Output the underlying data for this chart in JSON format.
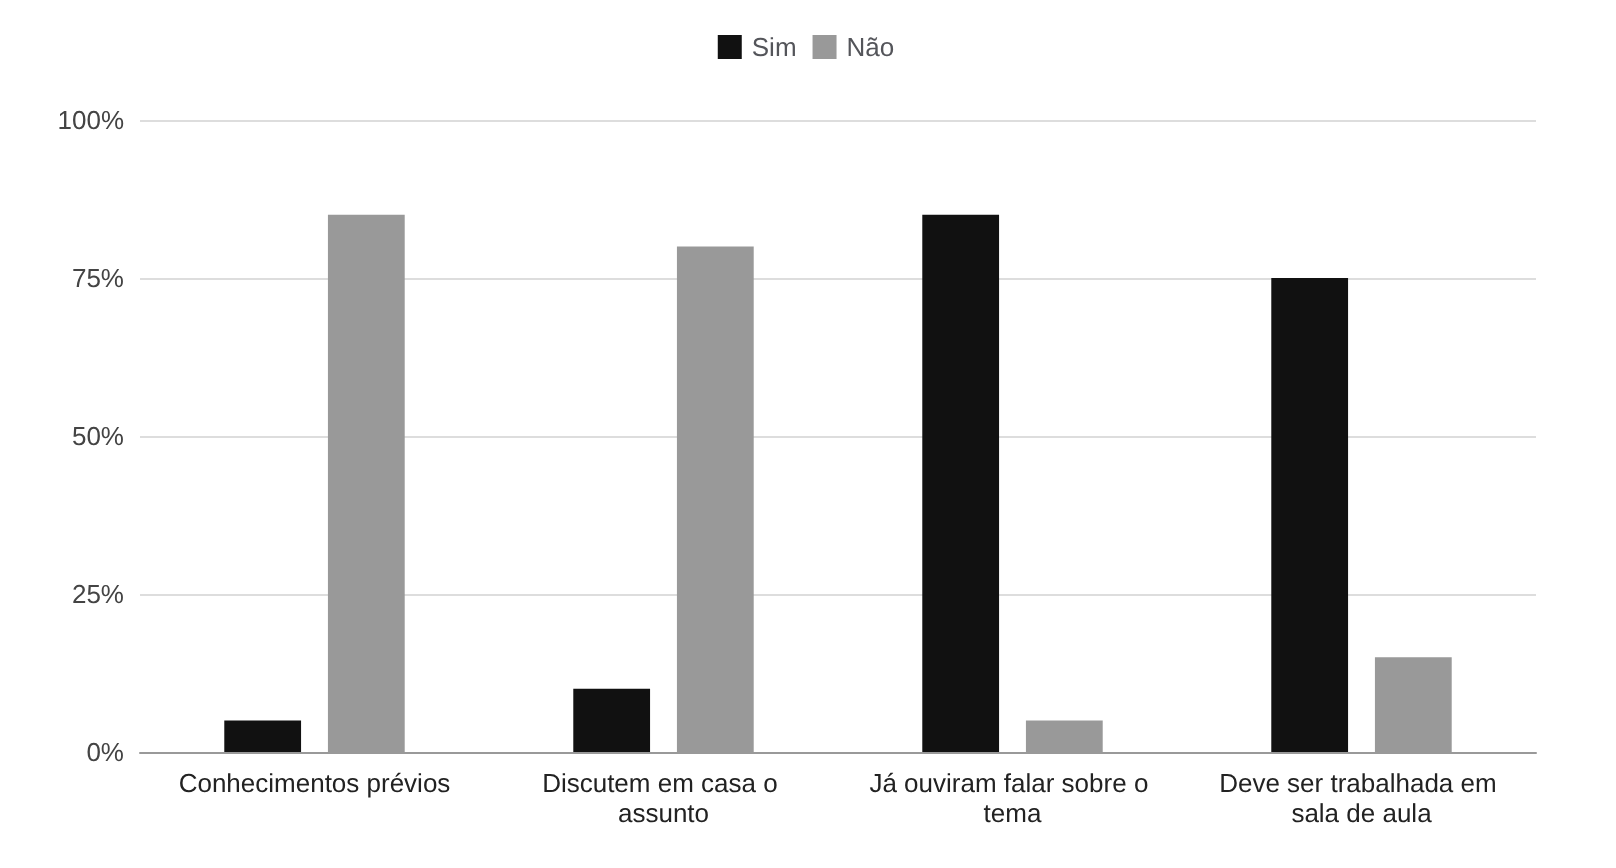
{
  "chart_data": {
    "type": "bar",
    "categories": [
      "Conhecimentos prévios",
      "Discutem em casa o assunto",
      "Já ouviram falar sobre o tema",
      "Deve ser trabalhada em sala de aula"
    ],
    "series": [
      {
        "name": "Sim",
        "color": "#111111",
        "values": [
          5,
          10,
          85,
          75
        ]
      },
      {
        "name": "Não",
        "color": "#999999",
        "values": [
          85,
          80,
          5,
          15
        ]
      }
    ],
    "ylim": [
      0,
      100
    ],
    "yticks": [
      {
        "value": 0,
        "label": "0%"
      },
      {
        "value": 25,
        "label": "25%"
      },
      {
        "value": 50,
        "label": "50%"
      },
      {
        "value": 75,
        "label": "75%"
      },
      {
        "value": 100,
        "label": "100%"
      }
    ],
    "grid": "y",
    "legend": "top"
  }
}
